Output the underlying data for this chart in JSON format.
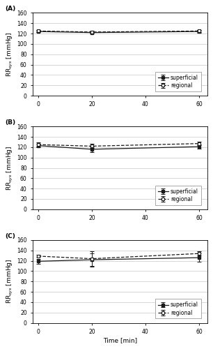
{
  "panels": [
    "(A)",
    "(B)",
    "(C)"
  ],
  "time_points": [
    0,
    20,
    60
  ],
  "ylim": [
    0,
    160
  ],
  "yticks": [
    0,
    20,
    40,
    60,
    80,
    100,
    120,
    140,
    160
  ],
  "xticks": [
    0,
    20,
    40,
    60
  ],
  "ylabel": "RR$_{sys}$ [mmHg]",
  "xlabel": "Time [min]",
  "A_superficial_mean": [
    124,
    122,
    124
  ],
  "A_superficial_err": [
    1.5,
    1.5,
    2.5
  ],
  "A_regional_mean": [
    125,
    123,
    125
  ],
  "A_regional_err": [
    2.0,
    2.0,
    2.0
  ],
  "B_superficial_mean": [
    123,
    116,
    121
  ],
  "B_superficial_err": [
    3,
    5,
    4
  ],
  "B_regional_mean": [
    125,
    122,
    127
  ],
  "B_regional_err": [
    4,
    4,
    3
  ],
  "C_superficial_mean": [
    119,
    122,
    126
  ],
  "C_superficial_err": [
    5,
    12,
    8
  ],
  "C_regional_mean": [
    129,
    124,
    134
  ],
  "C_regional_err": [
    2,
    15,
    4
  ],
  "line_color": "#1a1a1a",
  "background_color": "#ffffff",
  "grid_color": "#c8c8c8",
  "legend_fontsize": 5.5,
  "tick_fontsize": 5.5,
  "label_fontsize": 6.5,
  "panel_label_fontsize": 6.5
}
